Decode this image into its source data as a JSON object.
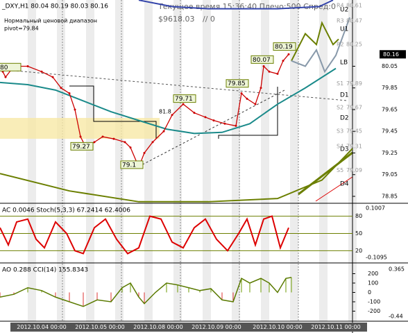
{
  "header": {
    "symbol": "_DXY,H1  80.04 80.19 80.03 80.16",
    "clock": "Текущее время 15:36:40 Плечо:500 Спред:0",
    "balance": "$9618.03",
    "count": "// 0",
    "range_note": "Нормальный ценовой диапазон",
    "pivot_note": "pivot=79.84"
  },
  "main": {
    "xlim": [
      0,
      127
    ],
    "ylim": [
      78.786,
      80.661
    ],
    "price": {
      "color": "#cc0000",
      "x": [
        1,
        2,
        5,
        10,
        15,
        19,
        22,
        25,
        27,
        29,
        31,
        34,
        37,
        41,
        45,
        47,
        50,
        52,
        55,
        59,
        62,
        66,
        70,
        74,
        77,
        81,
        85,
        87,
        89,
        92,
        94,
        95,
        97,
        100,
        102,
        104
      ],
      "values": [
        80.0,
        79.95,
        80.05,
        80.05,
        80.0,
        79.95,
        79.85,
        79.8,
        79.65,
        79.4,
        79.3,
        79.35,
        79.4,
        79.38,
        79.35,
        79.3,
        79.12,
        79.25,
        79.35,
        79.45,
        79.6,
        79.7,
        79.62,
        79.58,
        79.55,
        79.52,
        79.5,
        79.8,
        79.75,
        79.7,
        79.85,
        80.05,
        80.0,
        79.98,
        80.1,
        80.16
      ]
    },
    "bands": [
      {
        "color": "#1a8a8a",
        "x": [
          0,
          10,
          20,
          30,
          40,
          50,
          60,
          70,
          80,
          90,
          100,
          110,
          121
        ],
        "values": [
          79.9,
          79.88,
          79.83,
          79.73,
          79.63,
          79.55,
          79.47,
          79.43,
          79.44,
          79.52,
          79.7,
          79.85,
          80.03
        ]
      },
      {
        "color": "#6b7f00",
        "x": [
          0,
          25,
          50,
          75,
          100,
          116,
          127
        ],
        "values": [
          79.06,
          78.9,
          78.8,
          78.8,
          78.83,
          79.0,
          79.29
        ]
      },
      {
        "color": "#3344aa",
        "x": [
          50,
          62,
          75,
          100,
          115,
          120
        ],
        "values": [
          80.66,
          80.6,
          80.58,
          80.58,
          80.6,
          80.66
        ]
      },
      {
        "color": "#6b7f00",
        "x": [
          105,
          110,
          114,
          116,
          120,
          122
        ],
        "values": [
          80.1,
          80.35,
          80.25,
          80.45,
          80.25,
          80.3
        ]
      },
      {
        "color": "#8899aa",
        "x": [
          105,
          110,
          114,
          117,
          121,
          126
        ],
        "values": [
          80.1,
          80.05,
          80.2,
          80.0,
          80.15,
          80.5
        ]
      }
    ],
    "annotations": [
      {
        "x": 99,
        "value": 80.19
      },
      {
        "x": 91,
        "value": 80.07
      },
      {
        "x": 82,
        "value": 79.85
      },
      {
        "x": 63,
        "value": 79.71
      },
      {
        "x": 26,
        "value": 79.27
      },
      {
        "x": 44,
        "value": 79.1
      },
      {
        "x": 0,
        "value": 80.0
      }
    ],
    "fib_label": "81.8",
    "levels": [
      "U2",
      "U1",
      "LB",
      "D1",
      "D2",
      "D3",
      "D4"
    ],
    "pivots": [
      {
        "name": "R4",
        "value": 80.61
      },
      {
        "name": "R3",
        "value": 80.47
      },
      {
        "name": "R2",
        "value": 80.25
      },
      {
        "name": "S1",
        "value": 79.89
      },
      {
        "name": "S2",
        "value": 79.67
      },
      {
        "name": "S3",
        "value": 79.45
      },
      {
        "name": "S4",
        "value": 79.31
      },
      {
        "name": "S5",
        "value": 79.09
      }
    ],
    "yticks": [
      80.05,
      79.85,
      79.65,
      79.45,
      79.25,
      79.05,
      78.85
    ],
    "current": 80.16
  },
  "oscillator": {
    "title": "AC 0.0046  Stoch(5,3,3) 67.2414 62.4006",
    "ylim": [
      0,
      100
    ],
    "yticks": [
      80,
      50,
      20
    ],
    "y2labels": [
      "0.1007",
      "-0.1095"
    ],
    "stoch": {
      "color": "#dd0000",
      "x": [
        0,
        3,
        6,
        10,
        13,
        16,
        20,
        24,
        27,
        30,
        34,
        38,
        42,
        46,
        50,
        54,
        58,
        62,
        66,
        70,
        74,
        78,
        82,
        86,
        89,
        92,
        95,
        98,
        101,
        104
      ],
      "values": [
        60,
        30,
        70,
        75,
        40,
        25,
        70,
        50,
        20,
        15,
        60,
        75,
        40,
        15,
        25,
        80,
        75,
        35,
        25,
        60,
        75,
        40,
        20,
        50,
        75,
        30,
        75,
        80,
        25,
        60
      ]
    }
  },
  "cci_panel": {
    "title": "AO 0.288  CCI(14) 155.8343",
    "ylim": [
      -300,
      300
    ],
    "yticks": [
      200,
      100,
      0,
      -100,
      -200
    ],
    "y2labels": [
      "0.365",
      "-0.44"
    ],
    "cci": {
      "color": "#5a7a00",
      "x": [
        0,
        5,
        10,
        15,
        20,
        25,
        30,
        35,
        40,
        44,
        47,
        50,
        52,
        56,
        60,
        64,
        68,
        72,
        76,
        80,
        84,
        87,
        90,
        94,
        97,
        100,
        103,
        105
      ],
      "values": [
        -50,
        -20,
        50,
        20,
        -50,
        -100,
        -150,
        -80,
        -100,
        50,
        100,
        -50,
        -120,
        0,
        100,
        80,
        50,
        20,
        40,
        -80,
        -100,
        150,
        100,
        150,
        100,
        0,
        150,
        160
      ]
    }
  },
  "time_axis": {
    "x": [
      15,
      36,
      57,
      78,
      100,
      121
    ],
    "labels": [
      "2012.10.04 00:00",
      "2012.10.05 00:00",
      "2012.10.08 00:00",
      "2012.10.09 00:00",
      "2012.10.10 00:00",
      "2012.10.11 00:00"
    ]
  }
}
